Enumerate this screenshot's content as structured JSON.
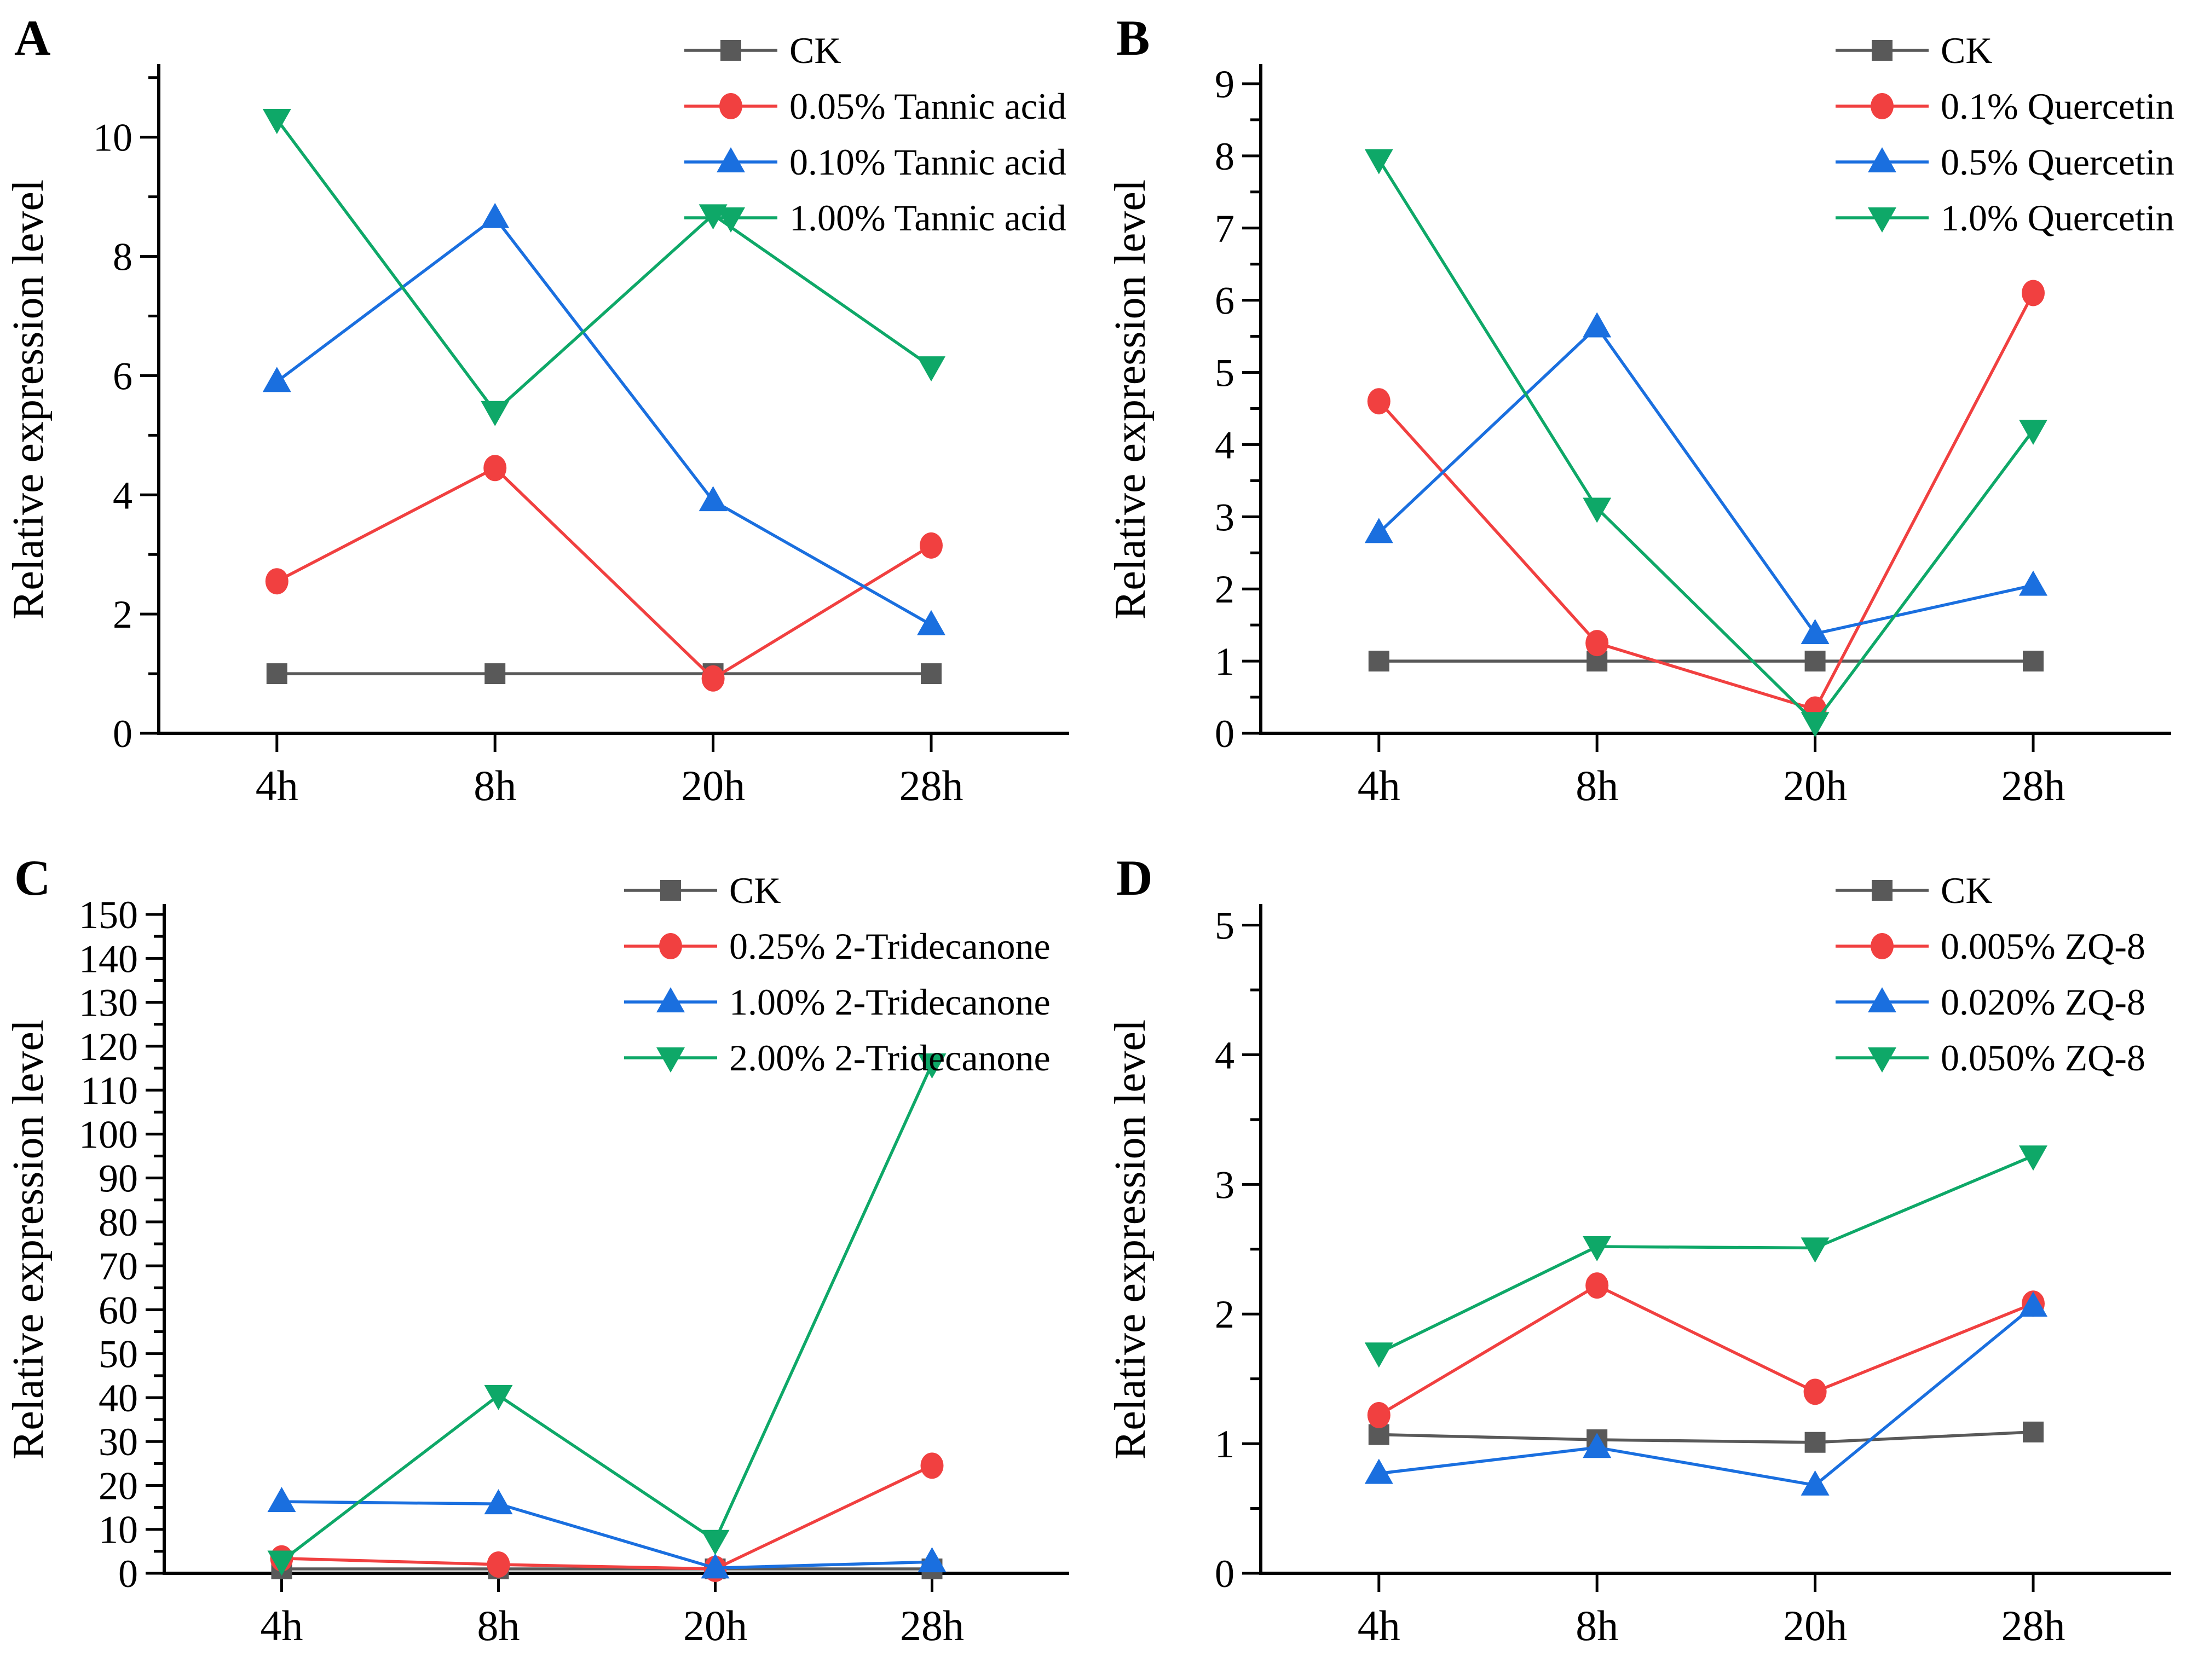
{
  "figure": {
    "background": "#ffffff",
    "axis_color": "#000000",
    "ylabel": "Relative expression level",
    "categories": [
      "4h",
      "8h",
      "20h",
      "28h"
    ]
  },
  "chart_data": [
    {
      "type": "line",
      "panel_label": "A",
      "title": "",
      "xlabel": "",
      "ylabel": "Relative expression level",
      "categories": [
        "4h",
        "8h",
        "20h",
        "28h"
      ],
      "ylim": [
        0,
        11.2
      ],
      "yticks": [
        0,
        2,
        4,
        6,
        8,
        10
      ],
      "yminor_step": 1,
      "grid": false,
      "legend_position": "top-right",
      "layout": {
        "legend_x": 1250,
        "margin_left": 290
      },
      "series": [
        {
          "name": "CK",
          "color": "#595959",
          "marker": "square",
          "values": [
            1.0,
            1.0,
            1.0,
            1.0
          ]
        },
        {
          "name": "0.05% Tannic acid",
          "color": "#F14040",
          "marker": "circle",
          "values": [
            2.55,
            4.45,
            0.92,
            3.15
          ]
        },
        {
          "name": "0.10% Tannic acid",
          "color": "#1A6FDF",
          "marker": "triangle-up",
          "values": [
            5.9,
            8.65,
            3.9,
            1.82
          ]
        },
        {
          "name": "1.00% Tannic acid",
          "color": "#0EA868",
          "marker": "triangle-down",
          "values": [
            10.3,
            5.4,
            8.7,
            6.15
          ]
        }
      ]
    },
    {
      "type": "line",
      "panel_label": "B",
      "title": "",
      "xlabel": "",
      "ylabel": "Relative expression level",
      "categories": [
        "4h",
        "8h",
        "20h",
        "28h"
      ],
      "ylim": [
        0,
        9.25
      ],
      "yticks": [
        0,
        1,
        2,
        3,
        4,
        5,
        6,
        7,
        8,
        9
      ],
      "yminor_step": 0.5,
      "grid": false,
      "legend_position": "top-right",
      "layout": {
        "legend_x": 1340,
        "margin_left": 290
      },
      "series": [
        {
          "name": "CK",
          "color": "#595959",
          "marker": "square",
          "values": [
            1.0,
            1.0,
            1.0,
            1.0
          ]
        },
        {
          "name": "0.1% Quercetin",
          "color": "#F14040",
          "marker": "circle",
          "values": [
            4.6,
            1.25,
            0.33,
            6.1
          ]
        },
        {
          "name": "0.5% Quercetin",
          "color": "#1A6FDF",
          "marker": "triangle-up",
          "values": [
            2.78,
            5.63,
            1.38,
            2.05
          ]
        },
        {
          "name": "1.0% Quercetin",
          "color": "#0EA868",
          "marker": "triangle-down",
          "values": [
            7.95,
            3.12,
            0.15,
            4.2
          ]
        }
      ]
    },
    {
      "type": "line",
      "panel_label": "C",
      "title": "",
      "xlabel": "",
      "ylabel": "Relative expression level",
      "categories": [
        "4h",
        "8h",
        "20h",
        "28h"
      ],
      "ylim": [
        0,
        152
      ],
      "yticks": [
        0,
        10,
        20,
        30,
        40,
        50,
        60,
        70,
        80,
        90,
        100,
        110,
        120,
        130,
        140,
        150
      ],
      "yminor_step": 5,
      "grid": false,
      "legend_position": "top-right",
      "layout": {
        "legend_x": 1140,
        "margin_left": 300
      },
      "series": [
        {
          "name": "CK",
          "color": "#595959",
          "marker": "square",
          "values": [
            1.0,
            1.0,
            1.0,
            1.0
          ]
        },
        {
          "name": "0.25% 2-Tridecanone",
          "color": "#F14040",
          "marker": "circle",
          "values": [
            3.4,
            2.0,
            1.0,
            24.5
          ]
        },
        {
          "name": "1.00% 2-Tridecanone",
          "color": "#1A6FDF",
          "marker": "triangle-up",
          "values": [
            16.3,
            15.8,
            1.2,
            2.6
          ]
        },
        {
          "name": "2.00% 2-Tridecanone",
          "color": "#0EA868",
          "marker": "triangle-down",
          "values": [
            2.8,
            40.5,
            7.5,
            116
          ]
        }
      ]
    },
    {
      "type": "line",
      "panel_label": "D",
      "title": "",
      "xlabel": "",
      "ylabel": "Relative expression level",
      "categories": [
        "4h",
        "8h",
        "20h",
        "28h"
      ],
      "ylim": [
        0,
        5.15
      ],
      "yticks": [
        0,
        1,
        2,
        3,
        4,
        5
      ],
      "yminor_step": 0.5,
      "grid": false,
      "legend_position": "top-right",
      "layout": {
        "legend_x": 1340,
        "margin_left": 290
      },
      "series": [
        {
          "name": "CK",
          "color": "#595959",
          "marker": "square",
          "values": [
            1.07,
            1.03,
            1.01,
            1.09
          ]
        },
        {
          "name": "0.005% ZQ-8",
          "color": "#F14040",
          "marker": "circle",
          "values": [
            1.22,
            2.22,
            1.4,
            2.08
          ]
        },
        {
          "name": "0.020% ZQ-8",
          "color": "#1A6FDF",
          "marker": "triangle-up",
          "values": [
            0.77,
            0.97,
            0.68,
            2.06
          ]
        },
        {
          "name": "0.050% ZQ-8",
          "color": "#0EA868",
          "marker": "triangle-down",
          "values": [
            1.7,
            2.52,
            2.51,
            3.22
          ]
        }
      ]
    }
  ]
}
